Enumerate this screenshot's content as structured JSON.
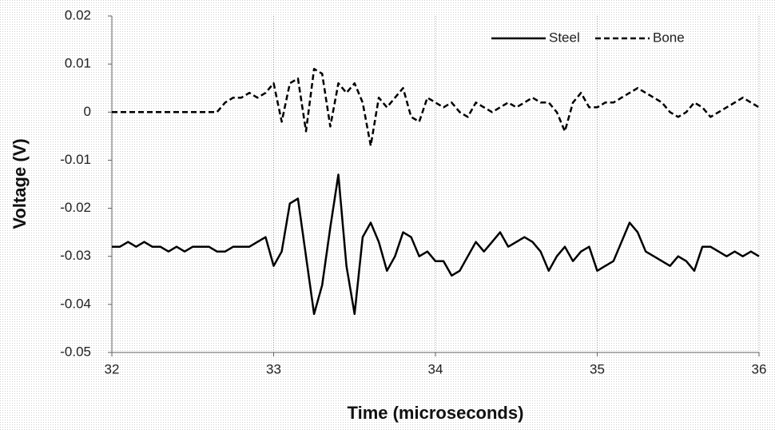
{
  "chart_data": {
    "type": "line",
    "xlabel": "Time (microseconds)",
    "ylabel": "Voltage (V)",
    "xlim": [
      32,
      36
    ],
    "xticks": [
      32,
      33,
      34,
      35,
      36
    ],
    "ylim": [
      -0.05,
      0.02
    ],
    "yticks": [
      0.02,
      0.01,
      0,
      -0.01,
      -0.02,
      -0.03,
      -0.04,
      -0.05
    ],
    "grid": "x",
    "legend": "top-right",
    "x": [
      32,
      32.05,
      32.1,
      32.15,
      32.2,
      32.25,
      32.3,
      32.35,
      32.4,
      32.45,
      32.5,
      32.55,
      32.6,
      32.65,
      32.7,
      32.75,
      32.8,
      32.85,
      32.9,
      32.95,
      33,
      33.05,
      33.1,
      33.15,
      33.2,
      33.25,
      33.3,
      33.35,
      33.4,
      33.45,
      33.5,
      33.55,
      33.6,
      33.65,
      33.7,
      33.75,
      33.8,
      33.85,
      33.9,
      33.95,
      34,
      34.05,
      34.1,
      34.15,
      34.2,
      34.25,
      34.3,
      34.35,
      34.4,
      34.45,
      34.5,
      34.55,
      34.6,
      34.65,
      34.7,
      34.75,
      34.8,
      34.85,
      34.9,
      34.95,
      35,
      35.05,
      35.1,
      35.15,
      35.2,
      35.25,
      35.3,
      35.35,
      35.4,
      35.45,
      35.5,
      35.55,
      35.6,
      35.65,
      35.7,
      35.75,
      35.8,
      35.85,
      35.9,
      35.95,
      36
    ],
    "series": [
      {
        "name": "Steel",
        "color": "#000000",
        "dash": "solid",
        "values": [
          -0.028,
          -0.028,
          -0.027,
          -0.028,
          -0.027,
          -0.028,
          -0.028,
          -0.029,
          -0.028,
          -0.029,
          -0.028,
          -0.028,
          -0.028,
          -0.029,
          -0.029,
          -0.028,
          -0.028,
          -0.028,
          -0.027,
          -0.026,
          -0.032,
          -0.029,
          -0.019,
          -0.018,
          -0.03,
          -0.042,
          -0.036,
          -0.024,
          -0.013,
          -0.032,
          -0.042,
          -0.026,
          -0.023,
          -0.027,
          -0.033,
          -0.03,
          -0.025,
          -0.026,
          -0.03,
          -0.029,
          -0.031,
          -0.031,
          -0.034,
          -0.033,
          -0.03,
          -0.027,
          -0.029,
          -0.027,
          -0.025,
          -0.028,
          -0.027,
          -0.026,
          -0.027,
          -0.029,
          -0.033,
          -0.03,
          -0.028,
          -0.031,
          -0.029,
          -0.028,
          -0.033,
          -0.032,
          -0.031,
          -0.027,
          -0.023,
          -0.025,
          -0.029,
          -0.03,
          -0.031,
          -0.032,
          -0.03,
          -0.031,
          -0.033,
          -0.028,
          -0.028,
          -0.029,
          -0.03,
          -0.029,
          -0.03,
          -0.029,
          -0.03
        ]
      },
      {
        "name": "Bone",
        "color": "#000000",
        "dash": "dashed",
        "values": [
          0,
          0,
          0,
          0,
          0,
          0,
          0,
          0,
          0,
          0,
          0,
          0,
          0,
          0,
          0.002,
          0.003,
          0.003,
          0.004,
          0.003,
          0.004,
          0.006,
          -0.002,
          0.006,
          0.007,
          -0.004,
          0.009,
          0.008,
          -0.003,
          0.006,
          0.004,
          0.006,
          0.002,
          -0.007,
          0.003,
          0.001,
          0.003,
          0.005,
          -0.001,
          -0.002,
          0.003,
          0.002,
          0.001,
          0.002,
          0,
          -0.001,
          0.002,
          0.001,
          0,
          0.001,
          0.002,
          0.001,
          0.002,
          0.003,
          0.002,
          0.002,
          0,
          -0.004,
          0.002,
          0.004,
          0.001,
          0.001,
          0.002,
          0.002,
          0.003,
          0.004,
          0.005,
          0.004,
          0.003,
          0.002,
          0,
          -0.001,
          0,
          0.002,
          0.001,
          -0.001,
          0,
          0.001,
          0.002,
          0.003,
          0.002,
          0.001
        ]
      }
    ]
  }
}
